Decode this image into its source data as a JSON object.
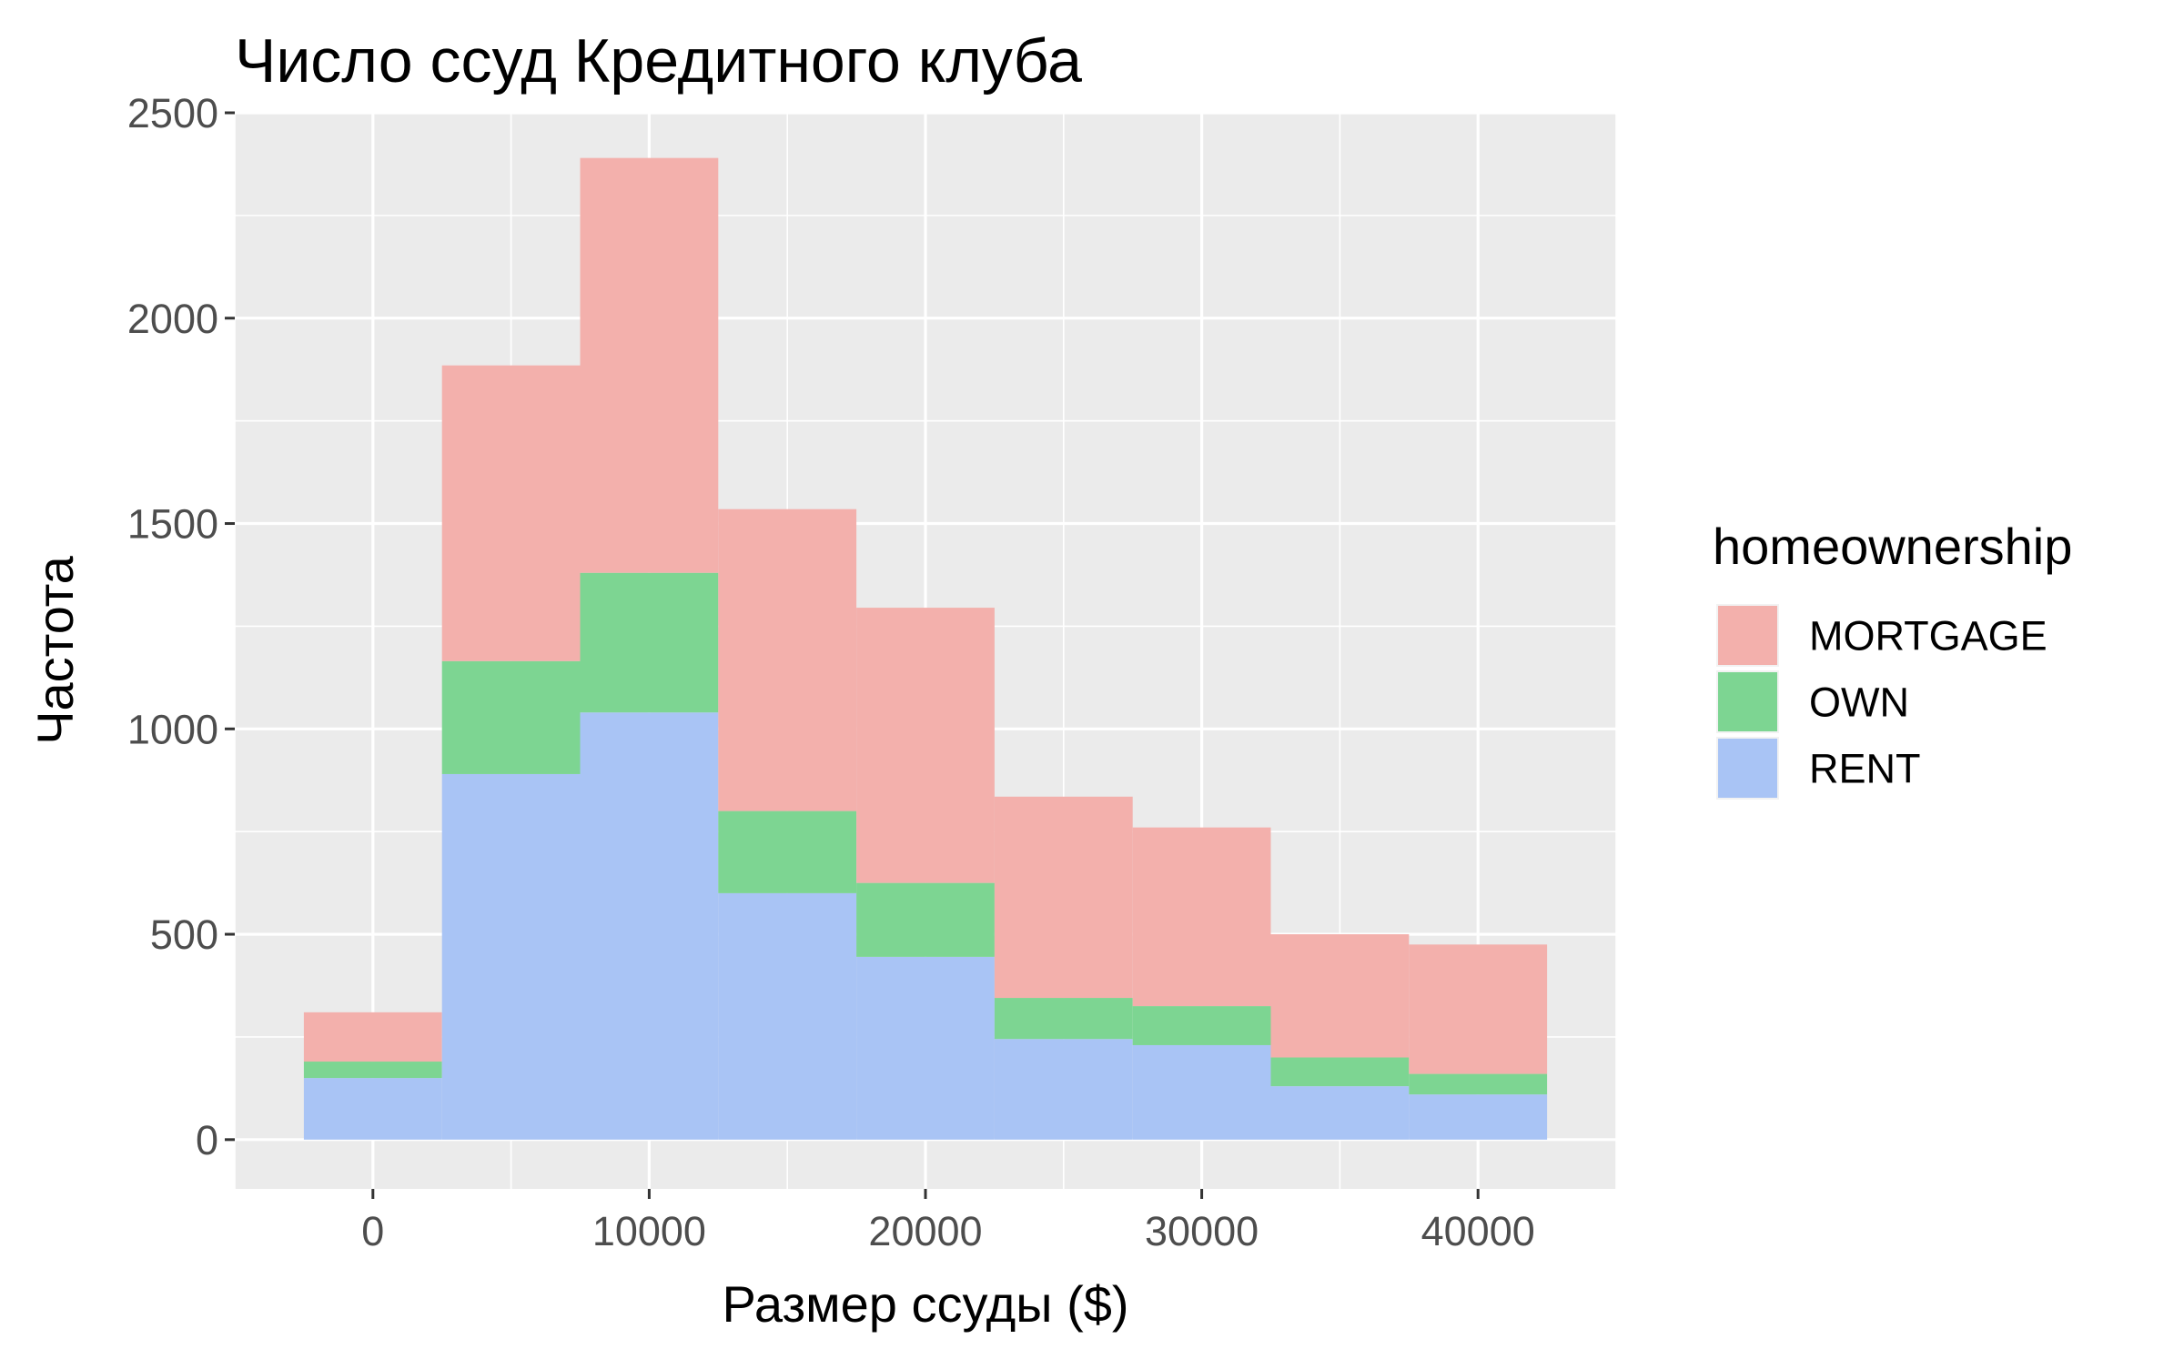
{
  "chart_data": {
    "type": "bar",
    "stacked": true,
    "subtype": "histogram",
    "title": "Число ссуд Кредитного клуба",
    "xlabel": "Размер ссуды ($)",
    "ylabel": "Частота",
    "xlim": [
      -5000,
      45000
    ],
    "ylim": [
      -120,
      2500
    ],
    "x_ticks": [
      0,
      10000,
      20000,
      30000,
      40000
    ],
    "y_ticks": [
      0,
      500,
      1000,
      1500,
      2000,
      2500
    ],
    "bin_width": 5000,
    "bin_centers": [
      0,
      5000,
      10000,
      15000,
      20000,
      25000,
      30000,
      35000,
      40000
    ],
    "series": [
      {
        "name": "RENT",
        "color": "#a9c4f5",
        "values": [
          150,
          890,
          1040,
          600,
          445,
          245,
          230,
          130,
          110
        ]
      },
      {
        "name": "OWN",
        "color": "#7dd592",
        "values": [
          40,
          275,
          340,
          200,
          180,
          100,
          95,
          70,
          50
        ]
      },
      {
        "name": "MORTGAGE",
        "color": "#f3b0ac",
        "values": [
          120,
          720,
          1010,
          735,
          670,
          490,
          435,
          300,
          315
        ]
      }
    ],
    "legend": {
      "title": "homeownership",
      "position": "right",
      "order": [
        "MORTGAGE",
        "OWN",
        "RENT"
      ]
    },
    "grid": true,
    "panel_background": "#ebebeb",
    "grid_color": "#ffffff"
  }
}
